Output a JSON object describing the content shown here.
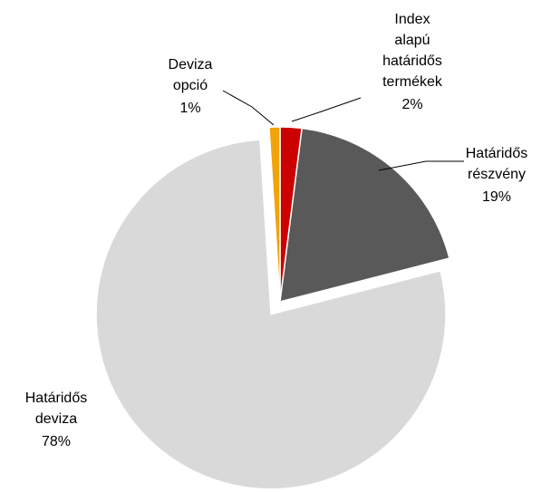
{
  "chart_data": {
    "type": "pie",
    "categories": [
      "Index alapú határidős termékek",
      "Határidős részvény",
      "Határidős deviza",
      "Deviza opció"
    ],
    "values": [
      2,
      19,
      78,
      1
    ],
    "value_labels": [
      "2%",
      "19%",
      "78%",
      "1%"
    ],
    "colors": [
      "#cc0000",
      "#595959",
      "#d9d9d9",
      "#f0a30a"
    ],
    "exploded": [
      false,
      false,
      true,
      false
    ]
  }
}
